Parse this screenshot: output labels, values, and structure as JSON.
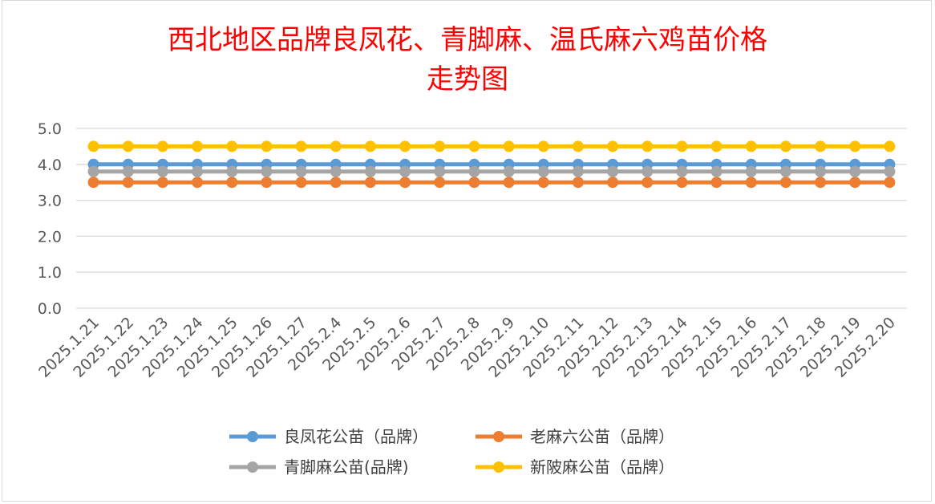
{
  "chart_data": {
    "type": "line",
    "title": "西北地区品牌良凤花、青脚麻、温氏麻六鸡苗价格",
    "subtitle": "走势图",
    "xlabel": "",
    "ylabel": "",
    "ylim": [
      0,
      5
    ],
    "yticks": [
      "0.0",
      "1.0",
      "2.0",
      "3.0",
      "4.0",
      "5.0"
    ],
    "grid": true,
    "legend_position": "bottom",
    "categories": [
      "2025.1.21",
      "2025.1.22",
      "2025.1.23",
      "2025.1.24",
      "2025.1.25",
      "2025.1.26",
      "2025.1.27",
      "2025.2.4",
      "2025.2.5",
      "2025.2.6",
      "2025.2.7",
      "2025.2.8",
      "2025.2.9",
      "2025.2.10",
      "2025.2.11",
      "2025.2.12",
      "2025.2.13",
      "2025.2.14",
      "2025.2.15",
      "2025.2.16",
      "2025.2.17",
      "2025.2.18",
      "2025.2.19",
      "2025.2.20"
    ],
    "series": [
      {
        "name": "良凤花公苗（品牌）",
        "color": "#5b9bd5",
        "values": [
          4.0,
          4.0,
          4.0,
          4.0,
          4.0,
          4.0,
          4.0,
          4.0,
          4.0,
          4.0,
          4.0,
          4.0,
          4.0,
          4.0,
          4.0,
          4.0,
          4.0,
          4.0,
          4.0,
          4.0,
          4.0,
          4.0,
          4.0,
          4.0
        ]
      },
      {
        "name": "老麻六公苗（品牌）",
        "color": "#ed7d31",
        "values": [
          3.5,
          3.5,
          3.5,
          3.5,
          3.5,
          3.5,
          3.5,
          3.5,
          3.5,
          3.5,
          3.5,
          3.5,
          3.5,
          3.5,
          3.5,
          3.5,
          3.5,
          3.5,
          3.5,
          3.5,
          3.5,
          3.5,
          3.5,
          3.5
        ]
      },
      {
        "name": "青脚麻公苗(品牌)",
        "color": "#a5a5a5",
        "values": [
          3.8,
          3.8,
          3.8,
          3.8,
          3.8,
          3.8,
          3.8,
          3.8,
          3.8,
          3.8,
          3.8,
          3.8,
          3.8,
          3.8,
          3.8,
          3.8,
          3.8,
          3.8,
          3.8,
          3.8,
          3.8,
          3.8,
          3.8,
          3.8
        ]
      },
      {
        "name": "新陂麻公苗（品牌）",
        "color": "#ffc000",
        "values": [
          4.5,
          4.5,
          4.5,
          4.5,
          4.5,
          4.5,
          4.5,
          4.5,
          4.5,
          4.5,
          4.5,
          4.5,
          4.5,
          4.5,
          4.5,
          4.5,
          4.5,
          4.5,
          4.5,
          4.5,
          4.5,
          4.5,
          4.5,
          4.5
        ]
      }
    ],
    "gridline_color": "#d9d9d9"
  }
}
